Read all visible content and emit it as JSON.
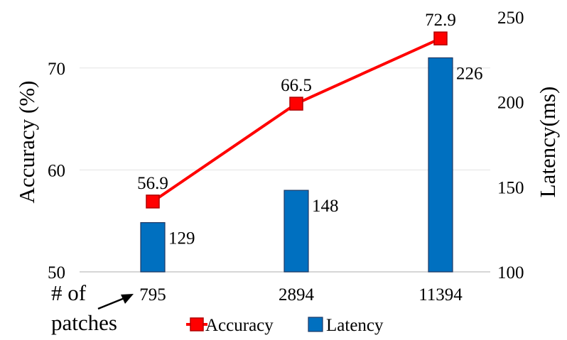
{
  "chart_data": {
    "type": "bar+line",
    "categories": [
      "795",
      "2894",
      "11394"
    ],
    "xlabel": "# of patches",
    "ylabel_left": "Accuracy  (%)",
    "ylabel_right": "Latency(ms)",
    "ylim_left": [
      50,
      70
    ],
    "ylim_left_max": 75,
    "yticks_left": [
      "50",
      "60",
      "70"
    ],
    "ylim_right": [
      100,
      250
    ],
    "yticks_right": [
      "100",
      "150",
      "200",
      "250"
    ],
    "grid": true,
    "legend_position": "bottom",
    "series": [
      {
        "name": "Accuracy",
        "kind": "line",
        "axis": "left",
        "color": "#ff0000",
        "values": [
          56.9,
          66.5,
          72.9
        ],
        "labels": [
          "56.9",
          "66.5",
          "72.9"
        ]
      },
      {
        "name": "Latency",
        "kind": "bar",
        "axis": "right",
        "color": "#0070c0",
        "values": [
          129,
          148,
          226
        ],
        "labels": [
          "129",
          "148",
          "226"
        ]
      }
    ]
  }
}
